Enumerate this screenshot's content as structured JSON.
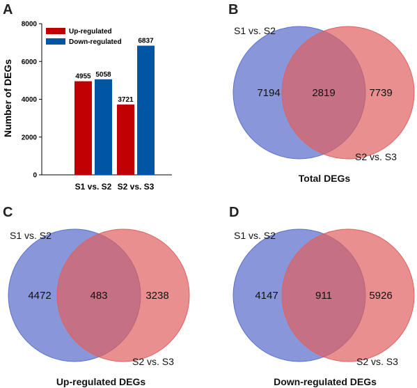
{
  "colors": {
    "up": "#c00000",
    "down": "#0055a5",
    "venn_left": "#5b6fcc",
    "venn_right": "#e06060"
  },
  "panel_a": {
    "letter": "A",
    "ylabel": "Number of DEGs"
  },
  "chart_data": {
    "type": "bar",
    "categories": [
      "S1 vs. S2",
      "S2 vs. S3"
    ],
    "series": [
      {
        "name": "Up-regulated",
        "values": [
          4955,
          3721
        ]
      },
      {
        "name": "Down-regulated",
        "values": [
          5058,
          6837
        ]
      }
    ],
    "ylabel": "Number of DEGs",
    "xlabel": "",
    "ylim": [
      0,
      8000
    ],
    "yticks": [
      "0",
      "2000",
      "4000",
      "6000",
      "8000"
    ],
    "legend": "top-left",
    "grid": false
  },
  "venns": [
    {
      "letter": "B",
      "set_a": "S1 vs. S2",
      "set_b": "S2 vs. S3",
      "only_a": "7194",
      "both": "2819",
      "only_b": "7739",
      "title": "Total DEGs"
    },
    {
      "letter": "C",
      "set_a": "S1 vs. S2",
      "set_b": "S2 vs. S3",
      "only_a": "4472",
      "both": "483",
      "only_b": "3238",
      "title": "Up-regulated DEGs"
    },
    {
      "letter": "D",
      "set_a": "S1 vs. S2",
      "set_b": "S2 vs. S3",
      "only_a": "4147",
      "both": "911",
      "only_b": "5926",
      "title": "Down-regulated DEGs"
    }
  ]
}
